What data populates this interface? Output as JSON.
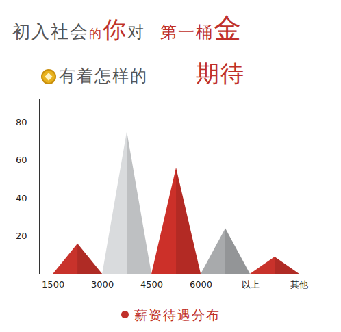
{
  "chart_data": {
    "type": "histogram",
    "title": [
      "初入社会的你对第一桶金",
      "有着怎样的期待"
    ],
    "caption": "薪资待遇分布",
    "bins": [
      "1500",
      "3000",
      "4500",
      "6000",
      "以上",
      "其他"
    ],
    "values": [
      16,
      75,
      56,
      24,
      9
    ],
    "colors": [
      "#c8322b",
      "#d9dbdd",
      "#cc3029",
      "#a8aaac",
      "#c8322b"
    ],
    "ylim": [
      0,
      92
    ],
    "yticks": [
      20,
      40,
      60,
      80
    ]
  }
}
